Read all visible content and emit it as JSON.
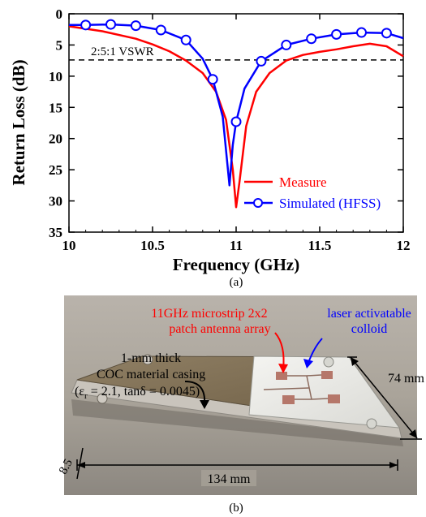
{
  "chart_data": {
    "type": "line",
    "xlabel": "Frequency (GHz)",
    "ylabel": "Return Loss (dB)",
    "xlim": [
      10,
      12
    ],
    "ylim": [
      0,
      35
    ],
    "y_inverted": true,
    "grid": false,
    "x_ticks": [
      "10",
      "10.5",
      "11",
      "11.5",
      "12"
    ],
    "y_ticks": [
      "0",
      "5",
      "10",
      "15",
      "20",
      "25",
      "30",
      "35"
    ],
    "legend_position": "bottom-right",
    "reference_line": {
      "y": 7.4,
      "label": "2:5:1 VSWR",
      "style": "dashed",
      "color": "#000000"
    },
    "series": [
      {
        "name": "Measure",
        "color": "#ff0000",
        "marker": "none",
        "x": [
          10.0,
          10.2,
          10.4,
          10.5,
          10.6,
          10.7,
          10.8,
          10.88,
          10.94,
          10.98,
          11.0,
          11.02,
          11.06,
          11.12,
          11.2,
          11.3,
          11.4,
          11.5,
          11.6,
          11.7,
          11.8,
          11.9,
          12.0
        ],
        "y": [
          2.0,
          2.8,
          4.0,
          4.9,
          6.0,
          7.5,
          9.5,
          12.5,
          17.0,
          25.0,
          31.0,
          27.0,
          18.0,
          12.5,
          9.5,
          7.5,
          6.6,
          6.1,
          5.7,
          5.2,
          4.8,
          5.2,
          6.8
        ]
      },
      {
        "name": "Simulated (HFSS)",
        "color": "#0000ff",
        "marker": "circle",
        "x": [
          10.0,
          10.1,
          10.25,
          10.4,
          10.55,
          10.7,
          10.8,
          10.86,
          10.92,
          10.96,
          10.98,
          11.0,
          11.05,
          11.15,
          11.3,
          11.45,
          11.6,
          11.75,
          11.9,
          12.0
        ],
        "y": [
          1.8,
          1.8,
          1.7,
          1.9,
          2.6,
          4.2,
          7.2,
          10.5,
          16.5,
          27.5,
          21.0,
          17.3,
          12.0,
          7.6,
          5.0,
          4.0,
          3.3,
          3.0,
          3.1,
          3.9
        ],
        "marker_x": [
          10.1,
          10.25,
          10.4,
          10.55,
          10.7,
          10.86,
          11.0,
          11.15,
          11.3,
          11.45,
          11.6,
          11.75,
          11.9
        ],
        "marker_y": [
          1.8,
          1.7,
          1.9,
          2.6,
          4.2,
          10.5,
          17.3,
          7.6,
          5.0,
          4.0,
          3.3,
          3.0,
          3.1
        ]
      }
    ]
  },
  "caption_a": "(a)",
  "caption_b": "(b)",
  "photo": {
    "title_line1": "11GHz microstrip 2x2",
    "title_line2": "patch antenna array",
    "title_color": "#ff0000",
    "colloid_line1": "laser activatable",
    "colloid_line2": "colloid",
    "colloid_color": "#0000ff",
    "casing_line1": "1-mm thick",
    "casing_line2": "COC material casing",
    "casing_line3": "(ε",
    "casing_sub": "r",
    "casing_line3b": " = 2.1, tanδ = 0.0045)",
    "dim_width": "134 mm",
    "dim_depth": "74 mm",
    "dim_height": "8.5"
  }
}
